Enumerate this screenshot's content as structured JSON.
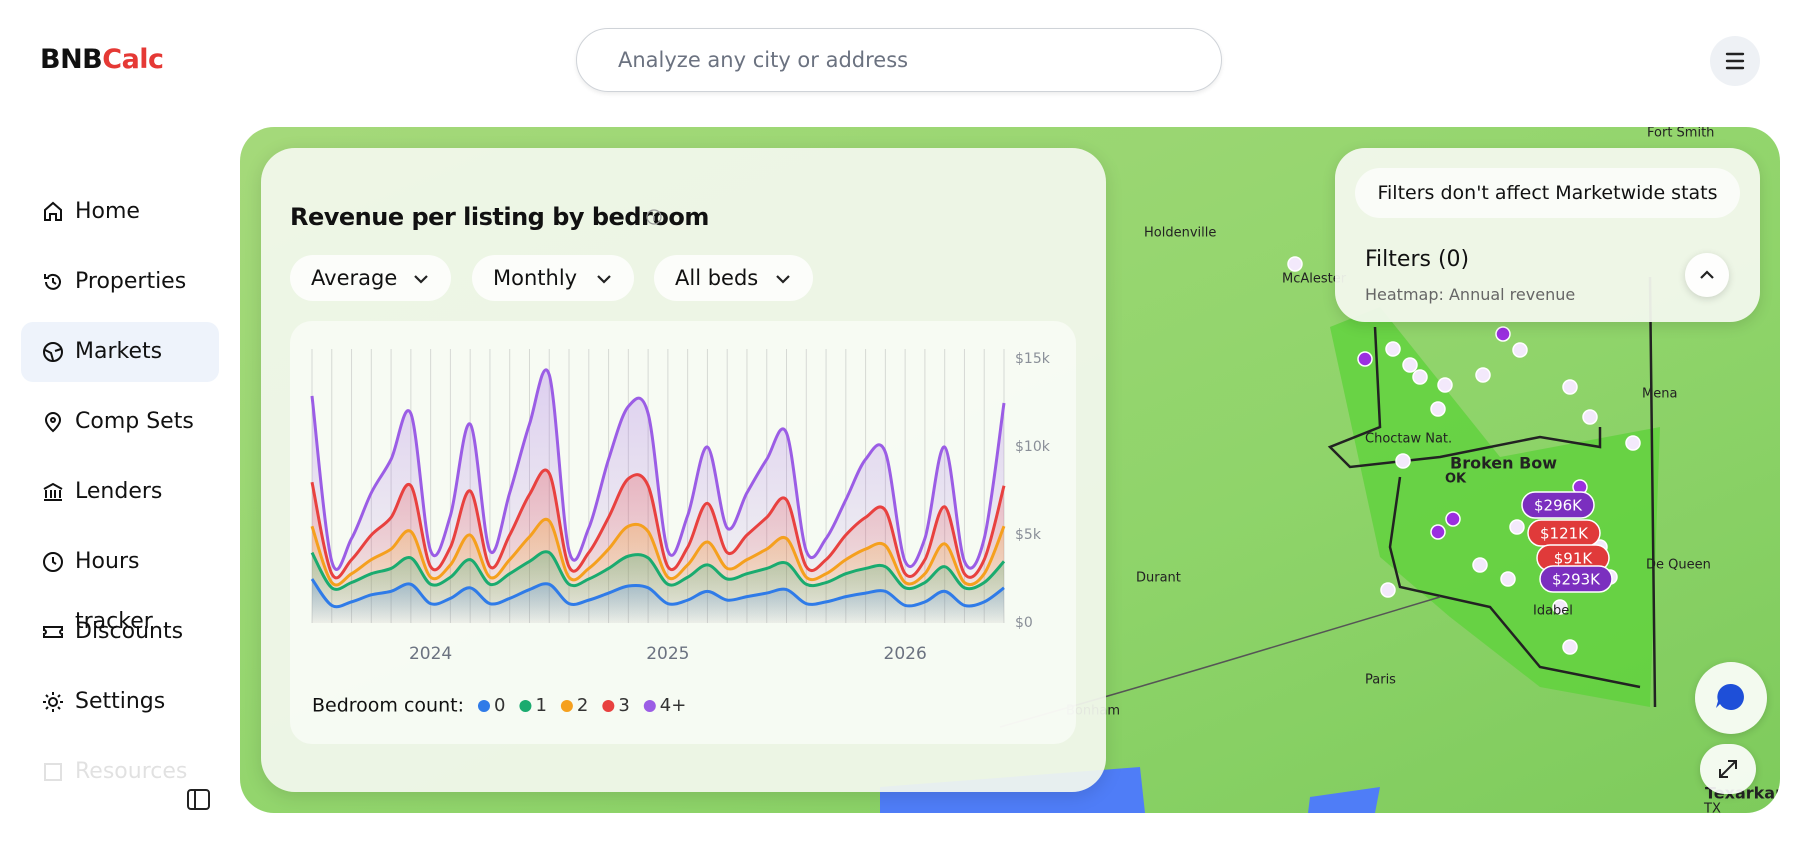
{
  "header": {
    "logo_left": "BNB",
    "logo_right": "Calc",
    "search_placeholder": "Analyze any city or address"
  },
  "nav": {
    "items": [
      "Home",
      "Properties",
      "Markets",
      "Comp Sets",
      "Lenders",
      "Hours tracker",
      "Discounts",
      "Settings",
      "Resources"
    ],
    "active": "Markets"
  },
  "panel": {
    "title": "Revenue per listing by bedroom",
    "dropdowns": [
      "Average",
      "Monthly",
      "All beds"
    ]
  },
  "chart_data": {
    "type": "line",
    "x": [
      2023.5,
      2023.5833,
      2023.6667,
      2023.75,
      2023.8333,
      2023.9167,
      2024,
      2024.0833,
      2024.1667,
      2024.25,
      2024.3333,
      2024.4167,
      2024.5,
      2024.5833,
      2024.6667,
      2024.75,
      2024.8333,
      2024.9167,
      2025,
      2025.0833,
      2025.1667,
      2025.25,
      2025.3333,
      2025.4167,
      2025.5,
      2025.5833,
      2025.6667,
      2025.75,
      2025.8333,
      2025.9167,
      2026,
      2026.0833,
      2026.1667,
      2026.25,
      2026.3333,
      2026.4167
    ],
    "xlim": [
      2023.5,
      2026.4167
    ],
    "xticks": [
      2024,
      2025,
      2026
    ],
    "ylim": [
      0,
      15000
    ],
    "yticks": [
      {
        "value": 0,
        "label": "$0"
      },
      {
        "value": 5000,
        "label": "$5k"
      },
      {
        "value": 10000,
        "label": "$10k"
      },
      {
        "value": 15000,
        "label": "$15k"
      }
    ],
    "grid": true,
    "legend_title": "Bedroom count:",
    "series": [
      {
        "name": "0",
        "color": "#2f7be8",
        "values": [
          2500,
          1000,
          1200,
          1600,
          1800,
          2200,
          1100,
          1400,
          2000,
          1100,
          1400,
          1900,
          2200,
          1100,
          1300,
          1700,
          2100,
          2000,
          1100,
          1300,
          1800,
          1300,
          1500,
          1700,
          1900,
          1100,
          1200,
          1500,
          1700,
          1800,
          1000,
          1200,
          1800,
          1000,
          1200,
          2000
        ]
      },
      {
        "name": "1",
        "color": "#1aab6f",
        "values": [
          4000,
          2000,
          2300,
          2800,
          3100,
          3700,
          2200,
          2600,
          3600,
          2200,
          2800,
          3500,
          4000,
          2200,
          2500,
          3100,
          3800,
          3700,
          2200,
          2600,
          3300,
          2500,
          2800,
          3100,
          3400,
          2200,
          2300,
          2800,
          3100,
          3200,
          2000,
          2300,
          3200,
          2000,
          2300,
          3500
        ]
      },
      {
        "name": "2",
        "color": "#f5a01e",
        "values": [
          5500,
          2300,
          2800,
          3600,
          4200,
          5200,
          2600,
          3300,
          5000,
          2600,
          3600,
          4900,
          5800,
          2600,
          3100,
          4200,
          5500,
          5200,
          2600,
          3300,
          4600,
          3100,
          3600,
          4200,
          4800,
          2600,
          2800,
          3600,
          4200,
          4400,
          2300,
          2800,
          4500,
          2300,
          2800,
          5500
        ]
      },
      {
        "name": "3",
        "color": "#e8413f",
        "values": [
          8000,
          2800,
          3600,
          5000,
          6000,
          7800,
          3200,
          4300,
          7500,
          3200,
          5000,
          7300,
          8500,
          3200,
          4000,
          6000,
          8200,
          7800,
          3200,
          4300,
          6800,
          4000,
          5000,
          6000,
          7000,
          3200,
          3600,
          5000,
          6000,
          6400,
          2800,
          3600,
          6600,
          2800,
          3600,
          7800
        ]
      },
      {
        "name": "4+",
        "color": "#9b5de5",
        "values": [
          12900,
          3500,
          4800,
          7400,
          9300,
          11900,
          4100,
          6100,
          11300,
          4100,
          7400,
          11300,
          14100,
          4100,
          5400,
          9300,
          12300,
          11900,
          4100,
          6100,
          10000,
          5400,
          7400,
          9300,
          10800,
          4100,
          4800,
          7000,
          9300,
          9700,
          3500,
          4800,
          10000,
          3500,
          4800,
          12500
        ]
      }
    ]
  },
  "filters": {
    "notice": "Filters don't affect Marketwide stats",
    "title": "Filters (0)",
    "subtitle": "Heatmap: Annual revenue"
  },
  "map": {
    "labels": [
      "Fort Smith",
      "Holdenville",
      "McAlester",
      "Choctaw Nat.",
      "Broken Bow",
      "OK",
      "Durant",
      "Paris",
      "Bonham",
      "Idabel",
      "De Queen",
      "Mena",
      "Texarkana",
      "TX"
    ],
    "pins": [
      "$296K",
      "$121K",
      "$91K",
      "$293K"
    ]
  }
}
